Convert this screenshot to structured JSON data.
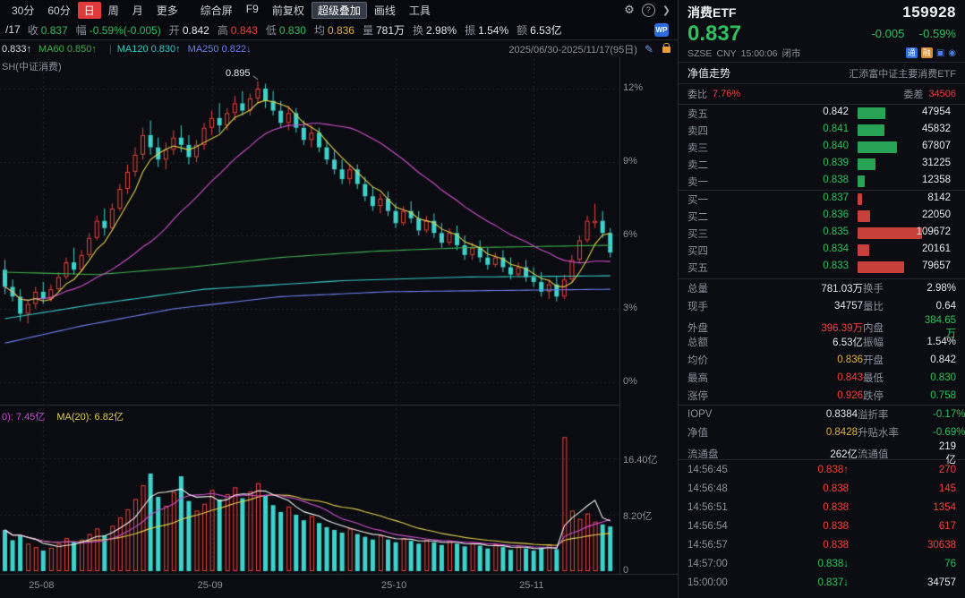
{
  "colors": {
    "up": "#f0413c",
    "down": "#2fc05e",
    "flat": "#e4e6ea",
    "avg": "#e0b23c",
    "label": "#8a8f99",
    "candle_down": "#3ed2cc",
    "bar_red": "#c8403a",
    "bar_green": "#27a355",
    "ma_yellow": "#e2cf4a",
    "ma_magenta": "#cf4ccf",
    "ma_green": "#3fae4e",
    "ma_cyan": "#35c8c8",
    "ma_blue": "#6f7ff2",
    "vol_white": "#f0f0f0",
    "grid": "#242832",
    "axis": "#2e323c"
  },
  "toolbar": {
    "periods": [
      {
        "label": "30分",
        "active": false
      },
      {
        "label": "60分",
        "active": false
      },
      {
        "label": "日",
        "active": true
      },
      {
        "label": "周",
        "active": false
      },
      {
        "label": "月",
        "active": false
      },
      {
        "label": "更多",
        "active": false
      }
    ],
    "tools": [
      {
        "label": "综合屏",
        "active": false
      },
      {
        "label": "F9",
        "active": false
      },
      {
        "label": "前复权",
        "active": false
      },
      {
        "label": "超级叠加",
        "active": true
      },
      {
        "label": "画线",
        "active": false
      },
      {
        "label": "工具",
        "active": false
      }
    ],
    "gear_icon": "⚙",
    "help_icon": "?",
    "expand_icon": "❯"
  },
  "quote_bar": {
    "date_prefix": "/17",
    "items": [
      {
        "label": "收",
        "value": "0.837",
        "color": "down"
      },
      {
        "label": "幅",
        "value": "-0.59%(-0.005)",
        "color": "down"
      },
      {
        "label": "开",
        "value": "0.842",
        "color": "flat"
      },
      {
        "label": "高",
        "value": "0.843",
        "color": "up"
      },
      {
        "label": "低",
        "value": "0.830",
        "color": "down"
      },
      {
        "label": "均",
        "value": "0.836",
        "color": "avg"
      },
      {
        "label": "量",
        "value": "781万",
        "color": "flat"
      },
      {
        "label": "换",
        "value": "2.98%",
        "color": "flat"
      },
      {
        "label": "振",
        "value": "1.54%",
        "color": "flat"
      },
      {
        "label": "额",
        "value": "6.53亿",
        "color": "flat"
      }
    ],
    "badge": "WP"
  },
  "ma_legend": {
    "items": [
      {
        "text": "0.833↑",
        "color": "#d8dce2"
      },
      {
        "text": "MA60 0.850↑",
        "color": "#3fae4e"
      },
      {
        "text": "MA120 0.830↑",
        "color": "#35c8c8"
      },
      {
        "text": "MA250 0.822↓",
        "color": "#6f7ff2"
      }
    ],
    "date_range": "2025/06/30-2025/11/17(95日)",
    "edit_icon": "✎"
  },
  "chart_header": {
    "index_label": "SH(中证消费)"
  },
  "volume_legend": {
    "items": [
      {
        "text": "0): 7.45亿",
        "color": "#cf4ccf"
      },
      {
        "text": "MA(20): 6.82亿",
        "color": "#e2cf4a"
      }
    ]
  },
  "panel": {
    "header": {
      "name": "消费ETF",
      "code": "159928",
      "price": "0.837",
      "change": "-0.005",
      "change_pct": "-0.59%",
      "exchange": "SZSE",
      "currency": "CNY",
      "time": "15:00:06",
      "status": "闭市",
      "tag1": "通",
      "tag2": "融"
    },
    "nav": {
      "left": "净值走势",
      "right": "汇添富中证主要消费ETF"
    },
    "weibi": {
      "label1": "委比",
      "value1": "7.76%",
      "label2": "委差",
      "value2": "34506"
    },
    "asks": [
      {
        "label": "卖五",
        "price": "0.842",
        "price_color": "flat",
        "vol": "47954"
      },
      {
        "label": "卖四",
        "price": "0.841",
        "price_color": "down",
        "vol": "45832"
      },
      {
        "label": "卖三",
        "price": "0.840",
        "price_color": "down",
        "vol": "67807"
      },
      {
        "label": "卖二",
        "price": "0.839",
        "price_color": "down",
        "vol": "31225"
      },
      {
        "label": "卖一",
        "price": "0.838",
        "price_color": "down",
        "vol": "12358"
      }
    ],
    "bids": [
      {
        "label": "买一",
        "price": "0.837",
        "price_color": "down",
        "vol": "8142"
      },
      {
        "label": "买二",
        "price": "0.836",
        "price_color": "down",
        "vol": "22050"
      },
      {
        "label": "买三",
        "price": "0.835",
        "price_color": "down",
        "vol": "109672"
      },
      {
        "label": "买四",
        "price": "0.834",
        "price_color": "down",
        "vol": "20161"
      },
      {
        "label": "买五",
        "price": "0.833",
        "price_color": "down",
        "vol": "79657"
      }
    ],
    "stats": [
      {
        "l1": "总量",
        "v1": "781.03万",
        "c1": "flat",
        "l2": "换手",
        "v2": "2.98%",
        "c2": "flat"
      },
      {
        "l1": "现手",
        "v1": "34757",
        "c1": "flat",
        "l2": "量比",
        "v2": "0.64",
        "c2": "flat"
      },
      {
        "l1": "外盘",
        "v1": "396.39万",
        "c1": "up",
        "l2": "内盘",
        "v2": "384.65万",
        "c2": "down"
      },
      {
        "l1": "总额",
        "v1": "6.53亿",
        "c1": "flat",
        "l2": "振幅",
        "v2": "1.54%",
        "c2": "flat"
      },
      {
        "l1": "均价",
        "v1": "0.836",
        "c1": "avg",
        "l2": "开盘",
        "v2": "0.842",
        "c2": "flat"
      },
      {
        "l1": "最高",
        "v1": "0.843",
        "c1": "up",
        "l2": "最低",
        "v2": "0.830",
        "c2": "down"
      },
      {
        "l1": "涨停",
        "v1": "0.926",
        "c1": "up",
        "l2": "跌停",
        "v2": "0.758",
        "c2": "down"
      }
    ],
    "stats2": [
      {
        "l1": "IOPV",
        "v1": "0.8384",
        "c1": "flat",
        "l2": "溢折率",
        "v2": "-0.17%",
        "c2": "down"
      },
      {
        "l1": "净值",
        "v1": "0.8428",
        "c1": "avg",
        "l2": "升贴水率",
        "v2": "-0.69%",
        "c2": "down"
      },
      {
        "l1": "流通盘",
        "v1": "262亿",
        "c1": "flat",
        "l2": "流通值",
        "v2": "219亿",
        "c2": "flat"
      }
    ],
    "ticks": [
      {
        "time": "14:56:45",
        "price": "0.838",
        "dir": "↑",
        "price_color": "up",
        "vol": "270",
        "vol_color": "up"
      },
      {
        "time": "14:56:48",
        "price": "0.838",
        "dir": "",
        "price_color": "up",
        "vol": "145",
        "vol_color": "up"
      },
      {
        "time": "14:56:51",
        "price": "0.838",
        "dir": "",
        "price_color": "up",
        "vol": "1354",
        "vol_color": "up"
      },
      {
        "time": "14:56:54",
        "price": "0.838",
        "dir": "",
        "price_color": "up",
        "vol": "617",
        "vol_color": "up"
      },
      {
        "time": "14:56:57",
        "price": "0.838",
        "dir": "",
        "price_color": "up",
        "vol": "30638",
        "vol_color": "up"
      },
      {
        "time": "14:57:00",
        "price": "0.838",
        "dir": "↓",
        "price_color": "down",
        "vol": "76",
        "vol_color": "down"
      },
      {
        "time": "15:00:00",
        "price": "0.837",
        "dir": "↓",
        "price_color": "down",
        "vol": "34757",
        "vol_color": "flat"
      }
    ]
  },
  "chart_data": {
    "type": "candlestick",
    "title": "消费ETF 159928 日K",
    "date_range": "2025/06/30-2025/11/17(95日)",
    "peak_annotation": {
      "label": "0.895",
      "index": 33
    },
    "y_axis_percent_labels": [
      "12%",
      "9%",
      "6%",
      "3%",
      "0%"
    ],
    "y_axis_percent_values": [
      12,
      9,
      6,
      3,
      0
    ],
    "volume_axis_labels": [
      "16.40亿",
      "8.20亿",
      "0"
    ],
    "volume_axis_values": [
      16.4,
      8.2,
      0
    ],
    "x_ticks": [
      {
        "label": "25-08",
        "index": 5
      },
      {
        "label": "25-09",
        "index": 27
      },
      {
        "label": "25-10",
        "index": 51
      },
      {
        "label": "25-11",
        "index": 69
      }
    ],
    "candles_ohlc_pct": [
      [
        4.6,
        5.0,
        3.6,
        3.9
      ],
      [
        3.9,
        4.2,
        3.3,
        3.5
      ],
      [
        3.5,
        3.8,
        2.5,
        2.8
      ],
      [
        2.8,
        3.4,
        2.4,
        3.2
      ],
      [
        3.2,
        3.9,
        3.0,
        3.7
      ],
      [
        3.7,
        4.1,
        3.2,
        3.4
      ],
      [
        3.4,
        4.0,
        3.3,
        3.8
      ],
      [
        3.8,
        4.5,
        3.7,
        4.3
      ],
      [
        4.3,
        5.1,
        4.2,
        4.9
      ],
      [
        4.9,
        5.5,
        4.4,
        4.6
      ],
      [
        4.6,
        5.4,
        4.5,
        5.2
      ],
      [
        5.2,
        6.1,
        5.1,
        5.9
      ],
      [
        5.9,
        6.8,
        5.8,
        6.6
      ],
      [
        6.6,
        7.1,
        6.0,
        6.3
      ],
      [
        6.3,
        7.3,
        6.2,
        7.1
      ],
      [
        7.1,
        8.1,
        7.0,
        7.9
      ],
      [
        7.9,
        8.9,
        7.7,
        8.6
      ],
      [
        8.6,
        9.6,
        8.4,
        9.3
      ],
      [
        9.3,
        10.4,
        9.1,
        10.1
      ],
      [
        10.1,
        10.7,
        9.3,
        9.6
      ],
      [
        9.6,
        10.0,
        8.8,
        9.1
      ],
      [
        9.1,
        9.8,
        8.7,
        9.5
      ],
      [
        9.5,
        10.3,
        9.3,
        10.0
      ],
      [
        10.0,
        10.5,
        9.4,
        9.7
      ],
      [
        9.7,
        10.1,
        8.9,
        9.2
      ],
      [
        9.2,
        9.9,
        9.0,
        9.7
      ],
      [
        9.7,
        10.6,
        9.5,
        10.4
      ],
      [
        10.4,
        11.1,
        10.1,
        10.8
      ],
      [
        10.8,
        11.4,
        10.2,
        10.5
      ],
      [
        10.5,
        11.2,
        10.3,
        11.0
      ],
      [
        11.0,
        11.7,
        10.7,
        11.4
      ],
      [
        11.4,
        11.9,
        10.9,
        11.1
      ],
      [
        11.1,
        11.8,
        10.9,
        11.6
      ],
      [
        11.6,
        12.3,
        11.4,
        12.0
      ],
      [
        12.0,
        12.2,
        11.2,
        11.5
      ],
      [
        11.5,
        11.9,
        10.9,
        11.1
      ],
      [
        11.1,
        11.5,
        10.4,
        10.6
      ],
      [
        10.6,
        11.3,
        10.3,
        11.0
      ],
      [
        11.0,
        11.2,
        10.2,
        10.4
      ],
      [
        10.4,
        10.7,
        9.7,
        9.9
      ],
      [
        9.9,
        10.5,
        9.6,
        10.2
      ],
      [
        10.2,
        10.4,
        9.4,
        9.6
      ],
      [
        9.6,
        9.9,
        8.9,
        9.1
      ],
      [
        9.1,
        9.5,
        8.5,
        8.7
      ],
      [
        8.7,
        9.1,
        8.1,
        8.3
      ],
      [
        8.3,
        8.9,
        8.1,
        8.7
      ],
      [
        8.7,
        8.9,
        7.9,
        8.1
      ],
      [
        8.1,
        8.4,
        7.4,
        7.6
      ],
      [
        7.6,
        8.0,
        7.0,
        7.2
      ],
      [
        7.2,
        7.7,
        6.9,
        7.5
      ],
      [
        7.5,
        7.8,
        6.8,
        7.0
      ],
      [
        7.0,
        7.3,
        6.3,
        6.5
      ],
      [
        6.5,
        7.2,
        6.4,
        7.0
      ],
      [
        7.0,
        7.4,
        6.5,
        6.7
      ],
      [
        6.7,
        7.0,
        6.0,
        6.2
      ],
      [
        6.2,
        6.8,
        6.1,
        6.6
      ],
      [
        6.6,
        6.9,
        5.9,
        6.1
      ],
      [
        6.1,
        6.5,
        5.5,
        5.7
      ],
      [
        5.7,
        6.3,
        5.6,
        6.1
      ],
      [
        6.1,
        6.4,
        5.4,
        5.6
      ],
      [
        5.6,
        6.0,
        5.0,
        5.2
      ],
      [
        5.2,
        5.7,
        5.0,
        5.5
      ],
      [
        5.5,
        5.8,
        4.9,
        5.1
      ],
      [
        5.1,
        5.5,
        4.6,
        4.8
      ],
      [
        4.8,
        5.3,
        4.7,
        5.1
      ],
      [
        5.1,
        5.4,
        4.5,
        4.7
      ],
      [
        4.7,
        5.1,
        4.2,
        4.4
      ],
      [
        4.4,
        4.9,
        4.3,
        4.7
      ],
      [
        4.7,
        5.0,
        4.1,
        4.3
      ],
      [
        4.3,
        4.7,
        3.9,
        4.1
      ],
      [
        4.1,
        4.5,
        3.5,
        3.7
      ],
      [
        3.7,
        4.2,
        3.4,
        4.0
      ],
      [
        4.0,
        4.3,
        3.3,
        3.5
      ],
      [
        3.5,
        4.4,
        3.4,
        4.2
      ],
      [
        4.2,
        5.2,
        4.1,
        5.0
      ],
      [
        5.0,
        6.0,
        4.9,
        5.8
      ],
      [
        5.8,
        6.8,
        5.7,
        6.6
      ],
      [
        6.5,
        7.3,
        6.3,
        6.6
      ],
      [
        6.6,
        7.0,
        5.9,
        6.1
      ],
      [
        6.1,
        6.3,
        5.1,
        5.3
      ]
    ],
    "volumes_yi": [
      6.0,
      4.5,
      5.2,
      4.0,
      3.5,
      3.0,
      3.4,
      4.0,
      4.8,
      4.2,
      4.6,
      5.4,
      6.2,
      5.2,
      6.6,
      7.8,
      9.0,
      10.5,
      12.5,
      14.2,
      10.8,
      9.5,
      11.5,
      13.8,
      10.2,
      8.8,
      9.8,
      11.8,
      10.4,
      11.2,
      12.2,
      10.6,
      11.6,
      12.8,
      11.0,
      9.6,
      8.6,
      9.4,
      8.2,
      7.4,
      8.0,
      7.0,
      6.4,
      6.0,
      5.6,
      6.2,
      5.4,
      5.0,
      4.6,
      5.2,
      4.6,
      4.2,
      4.8,
      4.4,
      4.0,
      4.6,
      4.2,
      3.8,
      4.4,
      4.0,
      3.6,
      4.1,
      3.7,
      3.3,
      3.9,
      3.5,
      3.1,
      3.6,
      3.3,
      3.0,
      3.4,
      3.8,
      3.2,
      19.5,
      8.8,
      7.6,
      8.4,
      7.2,
      6.8,
      6.5
    ],
    "overlay_anchor_lines": {
      "ma60_green": [
        [
          0,
          4.5
        ],
        [
          12,
          4.4
        ],
        [
          24,
          4.7
        ],
        [
          36,
          5.1
        ],
        [
          48,
          5.35
        ],
        [
          60,
          5.5
        ],
        [
          70,
          5.55
        ],
        [
          79,
          5.6
        ]
      ],
      "ma120_cyan": [
        [
          0,
          2.6
        ],
        [
          12,
          3.2
        ],
        [
          26,
          3.8
        ],
        [
          44,
          4.15
        ],
        [
          60,
          4.3
        ],
        [
          79,
          4.35
        ]
      ],
      "ma250_blue": [
        [
          0,
          1.6
        ],
        [
          10,
          2.3
        ],
        [
          22,
          3.0
        ],
        [
          36,
          3.5
        ],
        [
          50,
          3.7
        ],
        [
          79,
          3.8
        ]
      ]
    },
    "legend": {
      "kline_mas": [
        "MA60 0.850",
        "MA120 0.830",
        "MA250 0.822"
      ],
      "volume_mas": [
        "7.45亿",
        "MA(20) 6.82亿"
      ]
    }
  }
}
